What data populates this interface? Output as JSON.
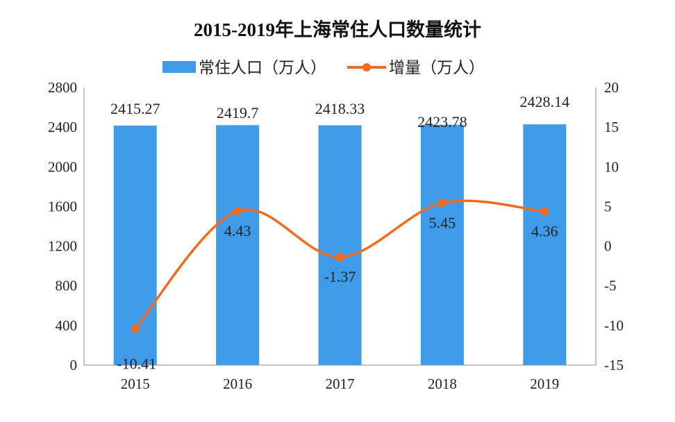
{
  "chart_data": {
    "type": "bar+line",
    "title": "2015-2019年上海常住人口数量统计",
    "categories": [
      "2015",
      "2016",
      "2017",
      "2018",
      "2019"
    ],
    "series": [
      {
        "name": "常住人口（万人）",
        "type": "bar",
        "axis": "left",
        "color": "#3d9be9",
        "values": [
          2415.27,
          2419.7,
          2418.33,
          2423.78,
          2428.14
        ],
        "labels": [
          "2415.27",
          "2419.7",
          "2418.33",
          "2423.78",
          "2428.14"
        ]
      },
      {
        "name": "增量（万人）",
        "type": "line",
        "smooth": true,
        "axis": "right",
        "color": "#f26b1d",
        "values": [
          -10.41,
          4.43,
          -1.37,
          5.45,
          4.36
        ],
        "labels": [
          "-10.41",
          "4.43",
          "-1.37",
          "5.45",
          "4.36"
        ]
      }
    ],
    "y_left": {
      "range": [
        0,
        2800
      ],
      "ticks": [
        "0",
        "400",
        "800",
        "1200",
        "1600",
        "2000",
        "2400",
        "2800"
      ]
    },
    "y_right": {
      "range": [
        -15,
        20
      ],
      "ticks": [
        "-15",
        "-10",
        "-5",
        "0",
        "5",
        "10",
        "15",
        "20"
      ]
    },
    "grid": false,
    "legend_placement": "top"
  }
}
